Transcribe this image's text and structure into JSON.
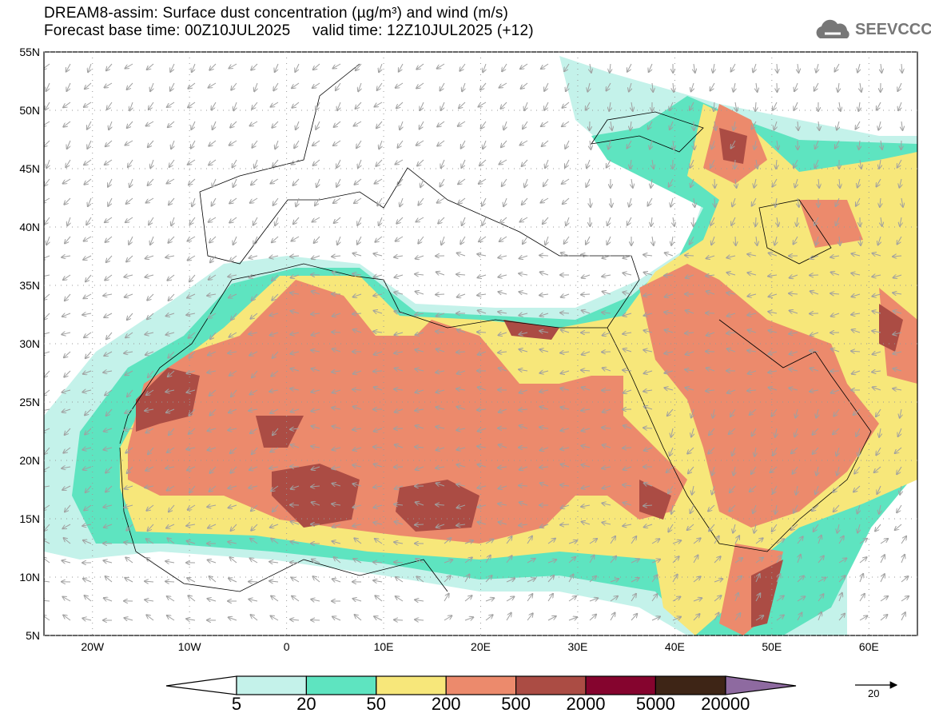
{
  "header": {
    "title": "DREAM8-assim: Surface dust concentration (µg/m³) and wind (m/s)",
    "subtitle": "Forecast base time: 00Z10JUL2025     valid time: 12Z10JUL2025 (+12)",
    "logo": "SEEVCCC"
  },
  "axes": {
    "lat_labels": [
      "55N",
      "50N",
      "45N",
      "40N",
      "35N",
      "30N",
      "25N",
      "20N",
      "15N",
      "10N",
      "5N"
    ],
    "lat_values": [
      55,
      50,
      45,
      40,
      35,
      30,
      25,
      20,
      15,
      10,
      5
    ],
    "lon_labels": [
      "20W",
      "10W",
      "0",
      "10E",
      "20E",
      "30E",
      "40E",
      "50E",
      "60E"
    ],
    "lon_values": [
      -20,
      -10,
      0,
      10,
      20,
      30,
      40,
      50,
      60
    ],
    "lon_range": [
      -25,
      65
    ],
    "lat_range": [
      5,
      55
    ]
  },
  "colorbar": {
    "labels": [
      "5",
      "20",
      "50",
      "200",
      "500",
      "2000",
      "5000",
      "20000"
    ],
    "colors": [
      "#ffffff",
      "#c4f2ea",
      "#5ee4c0",
      "#f7e77a",
      "#ec8a6c",
      "#ab4c44",
      "#85042e",
      "#3e2516",
      "#8e6aa0"
    ]
  },
  "wind_scale": {
    "value": "20"
  }
}
